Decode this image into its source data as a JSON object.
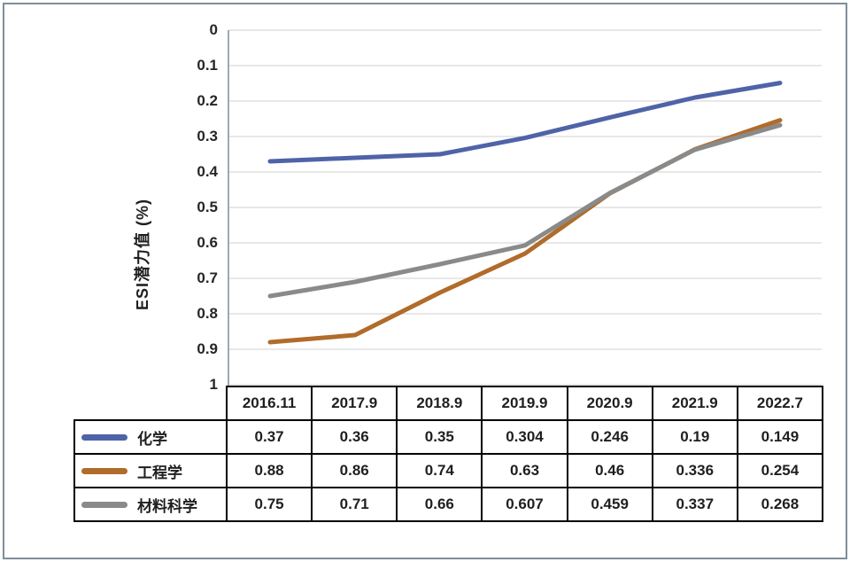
{
  "chart_data": {
    "type": "line",
    "title": "",
    "ylabel": "ESI潜力值 (%)",
    "xlabel": "",
    "categories": [
      "2016.11",
      "2017.9",
      "2018.9",
      "2019.9",
      "2020.9",
      "2021.9",
      "2022.7"
    ],
    "series": [
      {
        "name": "化学",
        "color": "#4F63A8",
        "values": [
          0.37,
          0.36,
          0.35,
          0.304,
          0.246,
          0.19,
          0.149
        ]
      },
      {
        "name": "工程学",
        "color": "#B06C2A",
        "values": [
          0.88,
          0.86,
          0.74,
          0.63,
          0.46,
          0.336,
          0.254
        ]
      },
      {
        "name": "材料科学",
        "color": "#8A8A8A",
        "values": [
          0.75,
          0.71,
          0.66,
          0.607,
          0.459,
          0.337,
          0.268
        ]
      }
    ],
    "ylim": [
      0,
      1
    ],
    "y_axis_inverted": true,
    "yticks": [
      "0",
      "0.1",
      "0.2",
      "0.3",
      "0.4",
      "0.5",
      "0.6",
      "0.7",
      "0.8",
      "0.9",
      "1"
    ],
    "grid": true,
    "legend_position": "data-table-left-column"
  },
  "colors": {
    "gridline": "#D9D9D9",
    "axis_line": "#9FA8B0",
    "table_border": "#000000",
    "text": "#1f1f1f",
    "outer_frame": "#7E8E9C",
    "background": "#ffffff"
  }
}
